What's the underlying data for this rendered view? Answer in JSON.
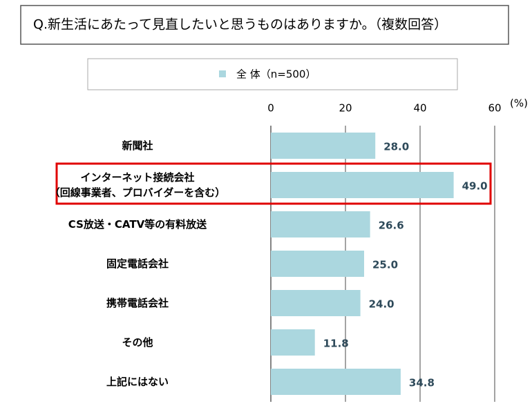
{
  "chart_data": {
    "type": "bar",
    "orientation": "horizontal",
    "title": "Q.新生活にあたって見直したいと思うものはありますか。（複数回答）",
    "unit": "(%)",
    "categories": [
      "新聞社",
      "インターネット接続会社\n（回線事業者、プロバイダーを含む）",
      "CS放送・CATV等の有料放送",
      "固定電話会社",
      "携帯電話会社",
      "その他",
      "上記にはない"
    ],
    "series": [
      {
        "name": "全 体（n=500）",
        "color": "#abd7df",
        "values": [
          28.0,
          49.0,
          26.6,
          25.0,
          24.0,
          11.8,
          34.8
        ],
        "value_labels": [
          "28.0",
          "49.0",
          "26.6",
          "25.0",
          "24.0",
          "11.8",
          "34.8"
        ]
      }
    ],
    "xlim": [
      0,
      60
    ],
    "xticks": [
      0,
      20,
      40,
      60
    ],
    "grid": true
  }
}
